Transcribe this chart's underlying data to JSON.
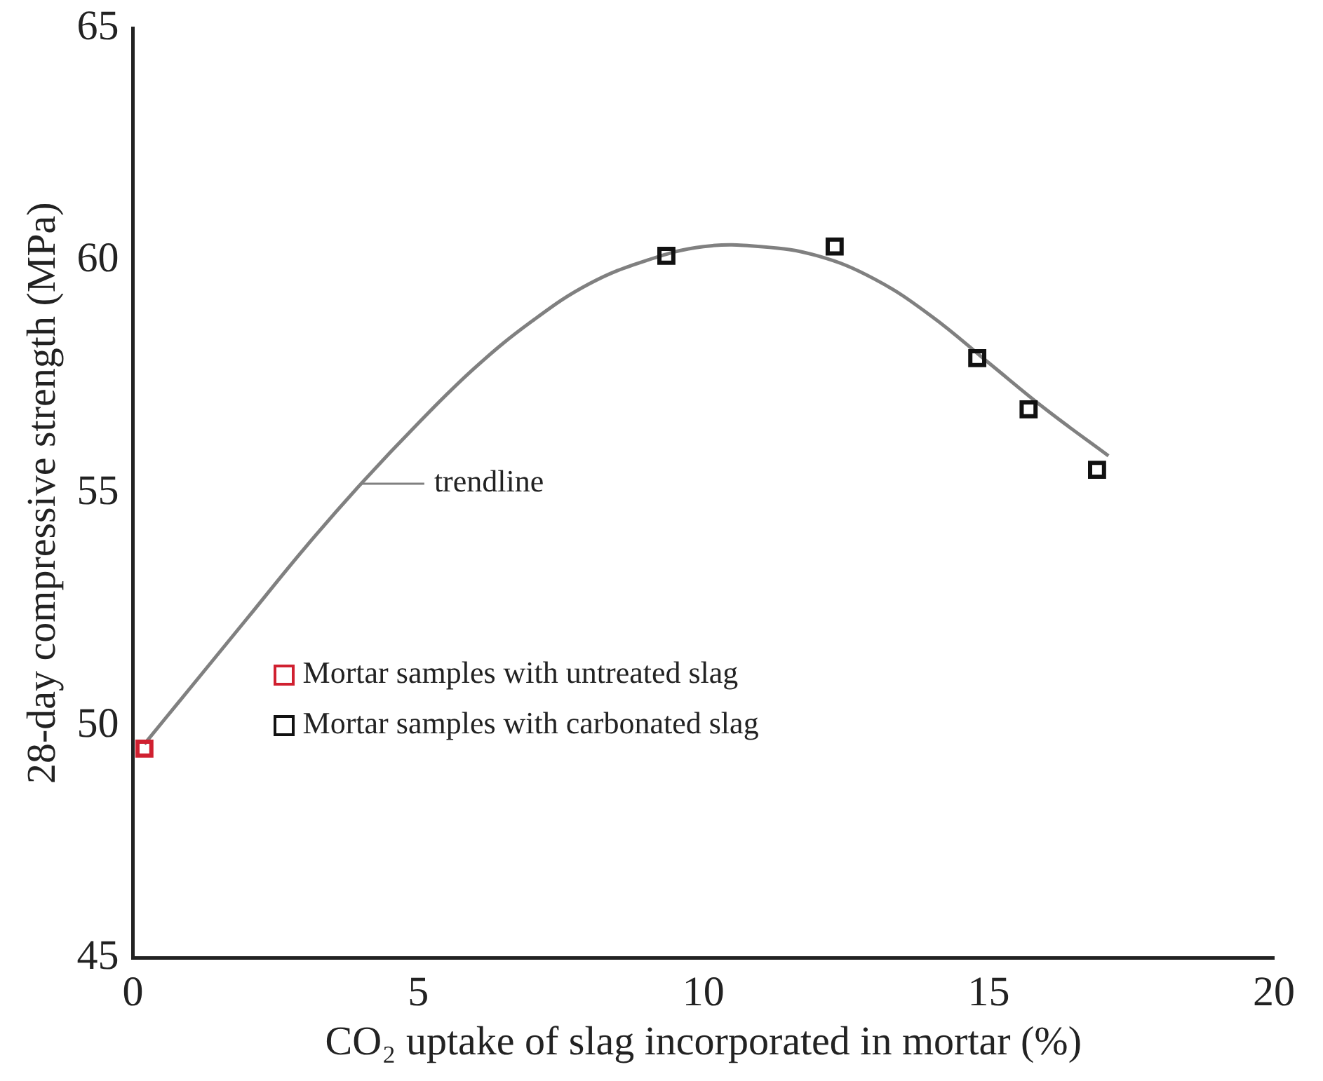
{
  "chart_data": {
    "type": "scatter",
    "xlabel": "CO₂ uptake of slag incorporated in mortar (%)",
    "ylabel": "28-day compressive strength (MPa)",
    "xlim": [
      0,
      20
    ],
    "xticks": [
      0,
      5,
      10,
      15,
      20
    ],
    "ylim": [
      45,
      65
    ],
    "yticks": [
      45,
      50,
      55,
      60,
      65
    ],
    "grid": false,
    "legend": "left",
    "marker": "square",
    "series": [
      {
        "type": "line",
        "color": "#808080",
        "marker": "none",
        "line_style": "solid",
        "x": [
          0.2,
          1,
          2,
          3,
          4,
          5,
          6,
          7,
          8,
          9,
          10,
          11,
          12,
          13,
          14,
          15,
          16,
          17.1
        ],
        "values": [
          49.6,
          50.8,
          52.3,
          53.8,
          55.2,
          56.5,
          57.7,
          58.7,
          59.5,
          60.0,
          60.3,
          60.3,
          60.1,
          59.6,
          58.8,
          57.8,
          56.8,
          55.8
        ]
      },
      {
        "name": "Mortar samples with untreated slag",
        "color": "#d02030",
        "x": [
          0.2
        ],
        "values": [
          49.5
        ]
      },
      {
        "name": "Mortar samples with carbonated slag",
        "color": "#111111",
        "x": [
          9.35,
          12.3,
          14.8,
          15.7,
          16.9
        ],
        "values": [
          60.1,
          60.3,
          57.9,
          56.8,
          55.5
        ]
      }
    ],
    "annotations": [
      {
        "text": "trendline",
        "x": 4,
        "y": 55.2
      }
    ]
  }
}
